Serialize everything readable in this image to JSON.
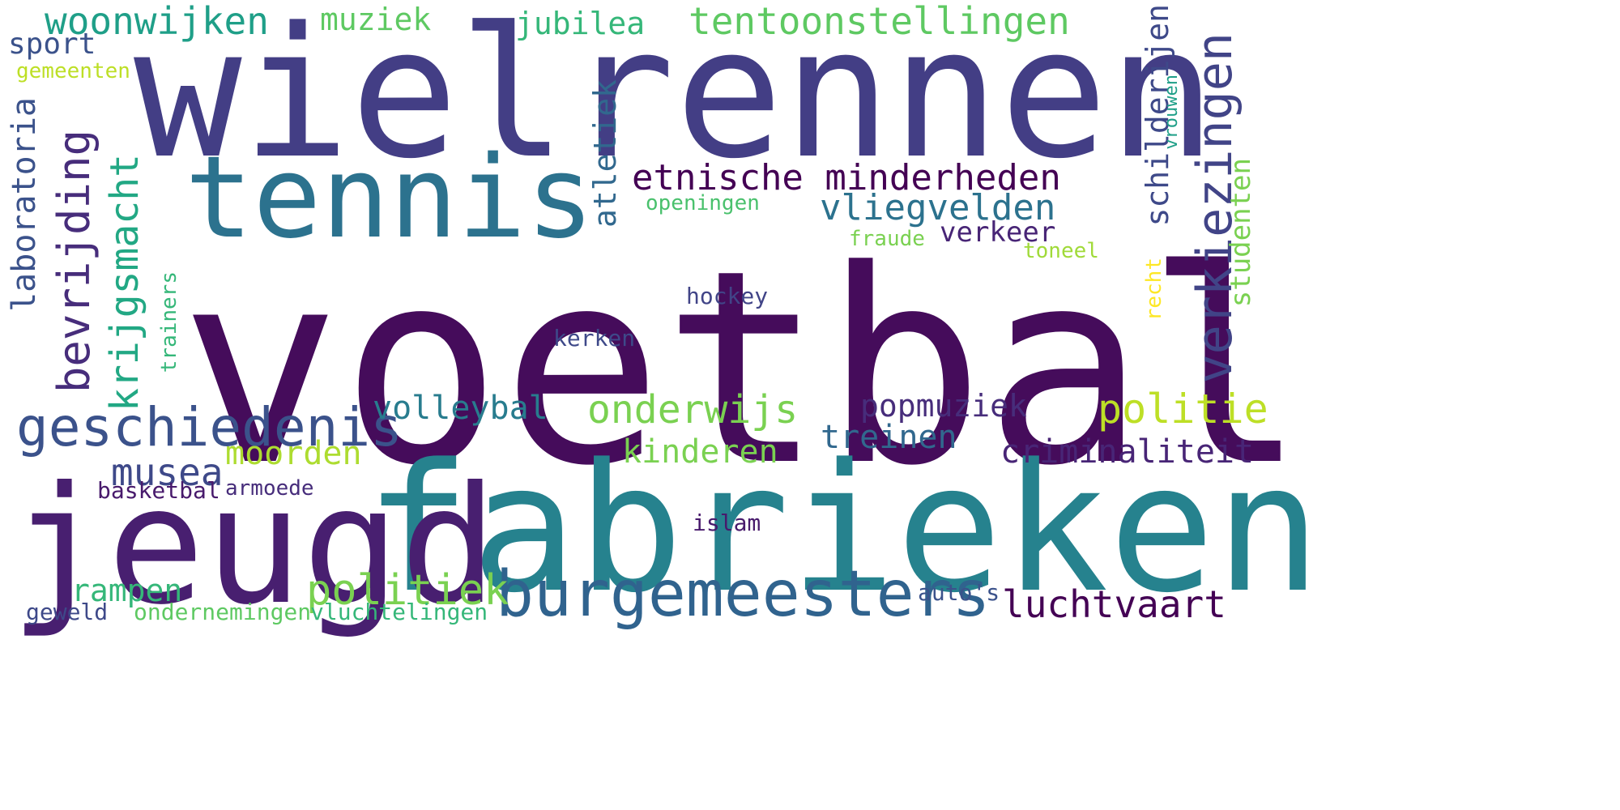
{
  "words": {
    "voetbal": "voetbal",
    "wielrennen": "wielrennen",
    "fabrieken": "fabrieken",
    "jeugd": "jeugd",
    "tennis": "tennis",
    "burgemeesters": "burgemeesters",
    "geschiedenis": "geschiedenis",
    "verkiezingen": "verkiezingen",
    "etnische_minderheden": "etnische minderheden",
    "tentoonstellingen": "tentoonstellingen",
    "woonwijken": "woonwijken",
    "bevrijding": "bevrijding",
    "krijgsmacht": "krijgsmacht",
    "vliegvelden": "vliegvelden",
    "onderwijs": "onderwijs",
    "politie": "politie",
    "politiek": "politiek",
    "luchtvaart": "luchtvaart",
    "criminaliteit": "criminaliteit",
    "schilderijen": "schilderijen",
    "laboratoria": "laboratoria",
    "atletiek": "atletiek",
    "musea": "musea",
    "popmuziek": "popmuziek",
    "volleybal": "volleybal",
    "treinen": "treinen",
    "kinderen": "kinderen",
    "moorden": "moorden",
    "rampen": "rampen",
    "muziek": "muziek",
    "jubilea": "jubilea",
    "sport": "sport",
    "verkeer": "verkeer",
    "studenten": "studenten",
    "hockey": "hockey",
    "kerken": "kerken",
    "basketbal": "basketbal",
    "armoede": "armoede",
    "islam": "islam",
    "auto_s": "auto's",
    "geweld": "geweld",
    "ondernemingen": "ondernemingen",
    "vluchtelingen": "vluchtelingen",
    "gemeenten": "gemeenten",
    "openingen": "openingen",
    "fraude": "fraude",
    "toneel": "toneel",
    "trainers": "trainers",
    "recht": "recht",
    "vrouwen": "vrouwen"
  },
  "colors": {
    "dark_purple": "#450c5b",
    "indigo": "#433e85",
    "blue": "#30638e",
    "teal": "#26828e",
    "green_teal": "#1f9f88",
    "green": "#35b779",
    "light_green": "#5ec962",
    "lime": "#addc30",
    "yellow": "#fde725"
  }
}
